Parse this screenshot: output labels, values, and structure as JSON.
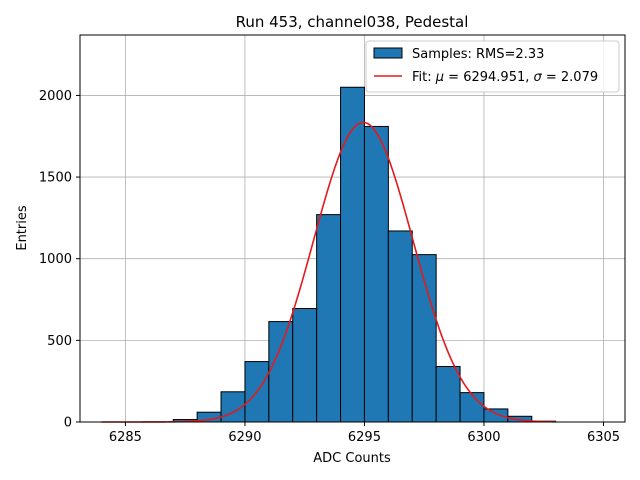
{
  "chart_data": {
    "type": "bar",
    "title": "Run 453, channel038, Pedestal",
    "xlabel": "ADC Counts",
    "ylabel": "Entries",
    "xlim": [
      6283.1,
      6305.9
    ],
    "ylim": [
      0,
      2370
    ],
    "grid": true,
    "x_ticks": [
      6285,
      6290,
      6295,
      6300,
      6305
    ],
    "y_ticks": [
      0,
      500,
      1000,
      1500,
      2000
    ],
    "histogram": {
      "name": "Samples: RMS=2.33",
      "color": "#1f77b4",
      "edgecolor": "#000000",
      "bin_edges": [
        6284,
        6285,
        6286,
        6287,
        6288,
        6289,
        6290,
        6291,
        6292,
        6293,
        6294,
        6295,
        6296,
        6297,
        6298,
        6299,
        6300,
        6301,
        6302,
        6303
      ],
      "counts": [
        0,
        0,
        0,
        15,
        60,
        185,
        370,
        615,
        695,
        1270,
        2050,
        1810,
        1170,
        1025,
        340,
        180,
        80,
        35,
        5
      ]
    },
    "fit": {
      "name": "Fit: μ = 6294.951, σ = 2.079",
      "label_prefix": "Fit: ",
      "mu_symbol": "μ",
      "mu_text": " = 6294.951, ",
      "sigma_symbol": "σ",
      "sigma_text": " = 2.079",
      "color": "#e41a1c",
      "mu": 6294.951,
      "sigma": 2.079,
      "amplitude": 1835,
      "x_range": [
        6284,
        6303
      ]
    },
    "legend": {
      "placement": "top-right"
    }
  }
}
